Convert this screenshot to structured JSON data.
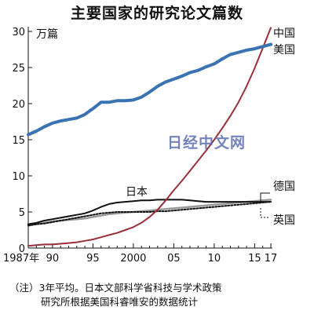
{
  "chart_data": {
    "type": "line",
    "title": "主要国家的研究论文篇数",
    "unit_label": "万篇",
    "ylim": [
      0,
      30
    ],
    "yticks": [
      0,
      5,
      10,
      15,
      20,
      25,
      30
    ],
    "xlim": [
      1987,
      2017
    ],
    "xticks": [
      {
        "value": 1987,
        "label": "1987年"
      },
      {
        "value": 1990,
        "label": "90"
      },
      {
        "value": 1995,
        "label": "95"
      },
      {
        "value": 2000,
        "label": "2000"
      },
      {
        "value": 2005,
        "label": "05"
      },
      {
        "value": 2010,
        "label": "10"
      },
      {
        "value": 2015,
        "label": "15"
      },
      {
        "value": 2017,
        "label": "17"
      }
    ],
    "x": [
      1987,
      1988,
      1989,
      1990,
      1991,
      1992,
      1993,
      1994,
      1995,
      1996,
      1997,
      1998,
      1999,
      2000,
      2001,
      2002,
      2003,
      2004,
      2005,
      2006,
      2007,
      2008,
      2009,
      2010,
      2011,
      2012,
      2013,
      2014,
      2015,
      2016,
      2017
    ],
    "series": [
      {
        "name": "美国",
        "color": "#3a73b4",
        "values": [
          15.7,
          16.2,
          16.8,
          17.3,
          17.6,
          17.8,
          18.0,
          18.5,
          19.3,
          20.2,
          20.2,
          20.4,
          20.4,
          20.5,
          20.9,
          21.6,
          22.4,
          23.0,
          23.4,
          23.8,
          24.3,
          24.6,
          25.1,
          25.5,
          26.2,
          26.8,
          27.1,
          27.4,
          27.6,
          27.9,
          28.2
        ]
      },
      {
        "name": "中国",
        "color": "#9b2f3a",
        "values": [
          0.3,
          0.4,
          0.5,
          0.5,
          0.6,
          0.7,
          0.8,
          1.0,
          1.2,
          1.5,
          1.8,
          2.1,
          2.5,
          2.9,
          3.5,
          4.3,
          5.3,
          6.6,
          8.0,
          9.3,
          10.7,
          12.1,
          13.5,
          15.0,
          16.6,
          18.3,
          20.2,
          22.4,
          24.9,
          27.7,
          30.5
        ]
      },
      {
        "name": "日本",
        "color": "#111111",
        "values": [
          3.3,
          3.5,
          3.8,
          4.0,
          4.2,
          4.4,
          4.6,
          4.8,
          5.2,
          5.7,
          6.1,
          6.3,
          6.4,
          6.5,
          6.6,
          6.6,
          6.7,
          6.7,
          6.7,
          6.7,
          6.6,
          6.5,
          6.4,
          6.4,
          6.4,
          6.4,
          6.4,
          6.4,
          6.4,
          6.4,
          6.4
        ]
      },
      {
        "name": "德国",
        "color": "#999999",
        "values": [
          3.2,
          3.3,
          3.5,
          3.7,
          3.8,
          3.9,
          4.0,
          4.1,
          4.3,
          4.5,
          4.7,
          4.8,
          4.9,
          5.0,
          5.1,
          5.2,
          5.3,
          5.4,
          5.5,
          5.6,
          5.7,
          5.8,
          5.9,
          6.0,
          6.1,
          6.2,
          6.3,
          6.4,
          6.5,
          6.6,
          6.7
        ]
      },
      {
        "name": "英国",
        "color": "#111111",
        "dashed": true,
        "values": [
          3.1,
          3.3,
          3.4,
          3.6,
          3.8,
          4.0,
          4.2,
          4.4,
          4.6,
          4.8,
          4.9,
          5.0,
          5.0,
          5.0,
          5.0,
          5.0,
          5.1,
          5.1,
          5.2,
          5.3,
          5.4,
          5.5,
          5.6,
          5.7,
          5.8,
          5.9,
          6.0,
          6.1,
          6.2,
          6.3,
          6.4
        ]
      }
    ],
    "grid": false,
    "legend": "direct labels"
  },
  "watermark": "日经中文网",
  "note": {
    "line1": "（注）3年平均。日本文部科学省科技与学术政策",
    "line2": "研究所根据美国科睿唯安的数据统计"
  }
}
